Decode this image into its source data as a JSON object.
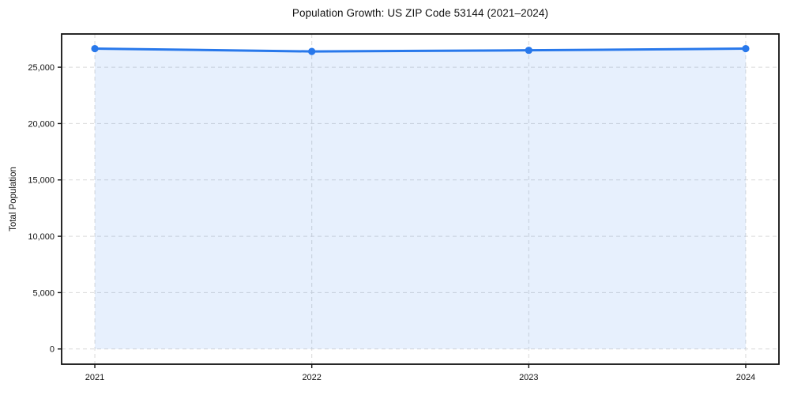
{
  "figure": {
    "background": "#ffffff"
  },
  "chart_data": {
    "type": "line",
    "title": "Population Growth: US ZIP Code 53144 (2021–2024)",
    "xlabel": "",
    "ylabel": "Total Population",
    "categories": [
      "2021",
      "2022",
      "2023",
      "2024"
    ],
    "values": [
      26650,
      26400,
      26500,
      26650
    ],
    "y_ticks": [
      0,
      5000,
      10000,
      15000,
      20000,
      25000
    ],
    "y_tick_labels": [
      "0",
      "5,000",
      "10,000",
      "15,000",
      "20,000",
      "25,000"
    ],
    "ylim": [
      -1350,
      27950
    ],
    "grid": "dashed-both-axes",
    "legend_position": "none",
    "marker": "circle",
    "area_fill": true,
    "colors": {
      "line": "#2878eb",
      "marker": "#2878eb",
      "area_fill_rgba": "rgba(40,120,235,0.11)",
      "grid": "#d9d9d9",
      "frame": "#111111",
      "tick": "#111111",
      "text": "#111111",
      "background": "#ffffff"
    }
  }
}
